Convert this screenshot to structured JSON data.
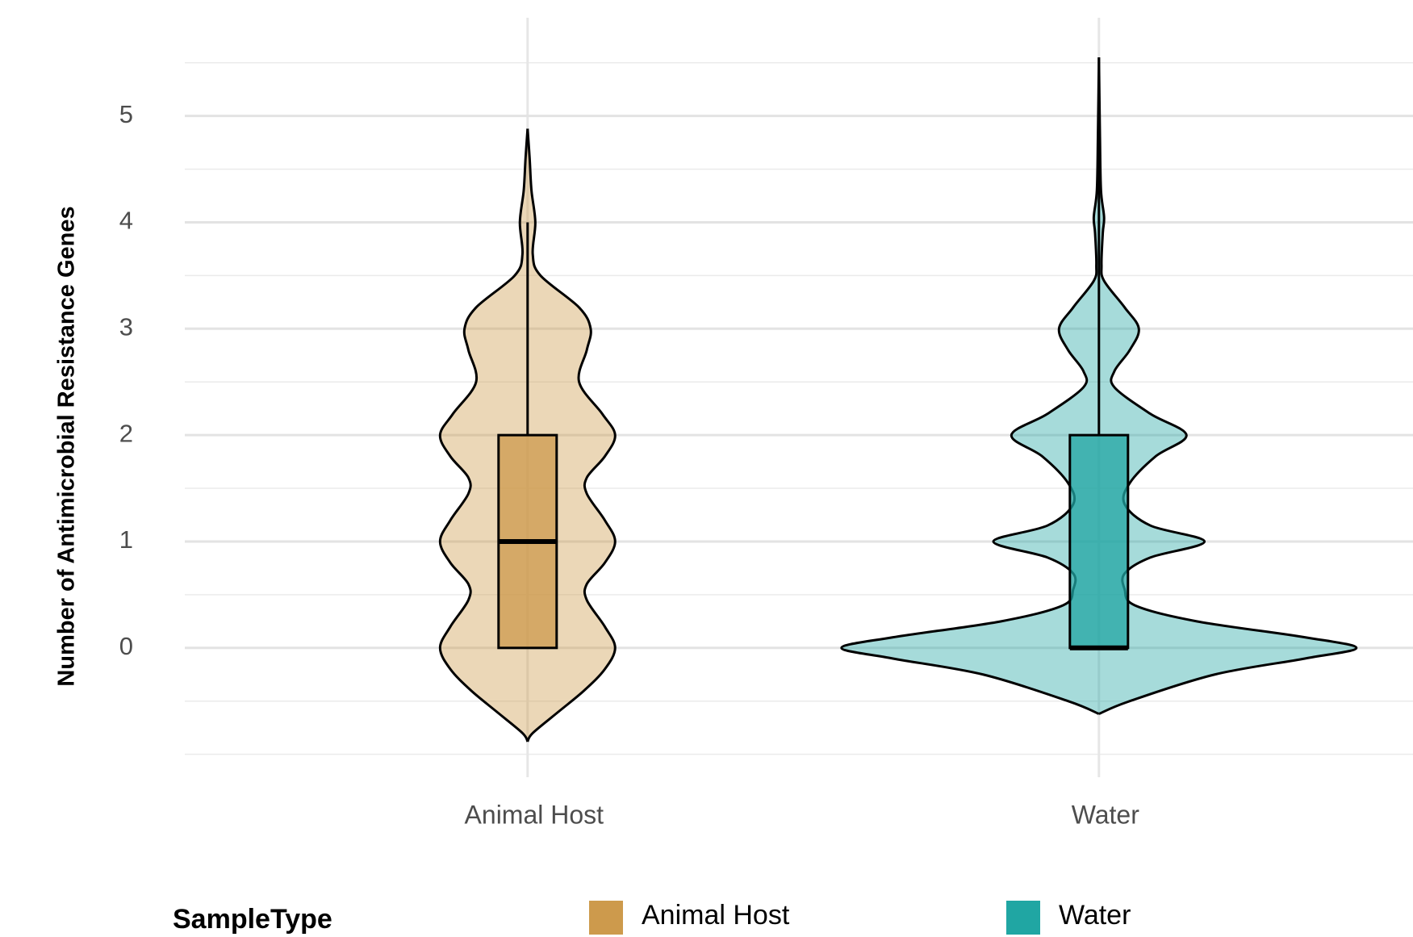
{
  "chart_data": {
    "type": "violin",
    "y_label": "Number of Antimicrobial Resistance Genes",
    "legend_title": "SampleType",
    "categories": [
      "Animal Host",
      "Water"
    ],
    "series": [
      {
        "name": "Animal Host",
        "color": "#cd9a4c",
        "box": {
          "whisker_low": 0,
          "q1": 0,
          "median": 1,
          "q3": 2,
          "whisker_high": 4
        },
        "violin": {
          "y": [
            -0.88,
            -0.8,
            -0.6,
            -0.4,
            -0.2,
            0,
            0.2,
            0.45,
            0.6,
            0.8,
            1,
            1.2,
            1.45,
            1.6,
            1.8,
            2,
            2.2,
            2.5,
            2.8,
            3,
            3.2,
            3.5,
            3.7,
            4.0,
            4.3,
            4.6,
            4.88
          ],
          "density": [
            0,
            0.02,
            0.12,
            0.22,
            0.3,
            0.34,
            0.3,
            0.23,
            0.23,
            0.3,
            0.34,
            0.3,
            0.23,
            0.23,
            0.3,
            0.34,
            0.29,
            0.2,
            0.23,
            0.245,
            0.2,
            0.05,
            0.02,
            0.03,
            0.015,
            0.008,
            0
          ]
        }
      },
      {
        "name": "Water",
        "color": "#20a6a3",
        "box": {
          "whisker_low": 0,
          "q1": 0,
          "median": 0,
          "q3": 2,
          "whisker_high": 5
        },
        "violin": {
          "y": [
            -0.62,
            -0.5,
            -0.25,
            -0.1,
            0,
            0.1,
            0.25,
            0.4,
            0.55,
            0.7,
            0.85,
            1,
            1.15,
            1.35,
            1.55,
            1.8,
            2,
            2.2,
            2.45,
            2.6,
            2.8,
            3,
            3.2,
            3.45,
            3.6,
            3.9,
            4.05,
            4.3,
            4.8,
            5.55
          ],
          "density": [
            0,
            0.12,
            0.45,
            0.8,
            1.0,
            0.8,
            0.38,
            0.14,
            0.1,
            0.1,
            0.2,
            0.41,
            0.2,
            0.1,
            0.12,
            0.22,
            0.34,
            0.2,
            0.06,
            0.06,
            0.12,
            0.155,
            0.1,
            0.02,
            0.01,
            0.015,
            0.02,
            0.008,
            0.004,
            0
          ]
        }
      }
    ],
    "ylim": [
      -1.2,
      5.9
    ],
    "yticks": [
      0,
      1,
      2,
      3,
      4,
      5
    ],
    "minor_grid": [
      -1,
      -0.5,
      0.5,
      1.5,
      2.5,
      3.5,
      4.5,
      5.5
    ],
    "grid": true,
    "legend": "bottom"
  }
}
